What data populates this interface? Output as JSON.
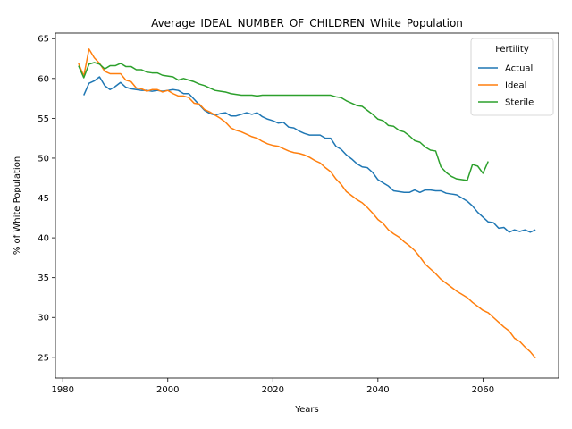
{
  "chart_data": {
    "type": "line",
    "title": "Average_IDEAL_NUMBER_OF_CHILDREN_White_Population",
    "xlabel": "Years",
    "ylabel": "% of White Population",
    "xlim": [
      1978.6,
      2074.4
    ],
    "ylim": [
      22.4,
      65.7
    ],
    "xticks": [
      1980,
      2000,
      2020,
      2040,
      2060
    ],
    "yticks": [
      25,
      30,
      35,
      40,
      45,
      50,
      55,
      60,
      65
    ],
    "grid": false,
    "legend": {
      "title": "Fertility",
      "placement": "top-right"
    },
    "series": [
      {
        "name": "Actual",
        "color": "#1f77b4",
        "x": [
          1984,
          1985,
          1986,
          1987,
          1988,
          1989,
          1990,
          1991,
          1992,
          1993,
          1994,
          1995,
          1996,
          1997,
          1998,
          1999,
          2000,
          2001,
          2002,
          2003,
          2004,
          2005,
          2006,
          2007,
          2008,
          2009,
          2010,
          2011,
          2012,
          2013,
          2014,
          2015,
          2016,
          2017,
          2018,
          2019,
          2020,
          2021,
          2022,
          2023,
          2024,
          2025,
          2026,
          2027,
          2028,
          2029,
          2030,
          2031,
          2032,
          2033,
          2034,
          2035,
          2036,
          2037,
          2038,
          2039,
          2040,
          2041,
          2042,
          2043,
          2044,
          2045,
          2046,
          2047,
          2048,
          2049,
          2050,
          2051,
          2052,
          2053,
          2054,
          2055,
          2056,
          2057,
          2058,
          2059,
          2060,
          2061,
          2062,
          2063,
          2064,
          2065,
          2066,
          2067,
          2068,
          2069,
          2070
        ],
        "y": [
          57.9,
          59.4,
          59.7,
          60.2,
          59.1,
          58.6,
          59.0,
          59.5,
          58.9,
          58.7,
          58.6,
          58.5,
          58.5,
          58.4,
          58.5,
          58.4,
          58.5,
          58.6,
          58.5,
          58.1,
          58.1,
          57.4,
          56.7,
          56.0,
          55.6,
          55.4,
          55.6,
          55.7,
          55.3,
          55.3,
          55.5,
          55.7,
          55.5,
          55.7,
          55.2,
          54.9,
          54.7,
          54.4,
          54.5,
          53.9,
          53.8,
          53.4,
          53.1,
          52.9,
          52.9,
          52.9,
          52.5,
          52.5,
          51.5,
          51.1,
          50.4,
          49.9,
          49.3,
          48.9,
          48.8,
          48.2,
          47.3,
          46.9,
          46.5,
          45.9,
          45.8,
          45.7,
          45.7,
          46.0,
          45.7,
          46.0,
          46.0,
          45.9,
          45.9,
          45.6,
          45.5,
          45.4,
          45.0,
          44.6,
          44.0,
          43.2,
          42.6,
          42.0,
          41.9,
          41.2,
          41.3,
          40.7,
          41.0,
          40.8,
          41.0,
          40.7,
          41.0
        ]
      },
      {
        "name": "Ideal",
        "color": "#ff7f0e",
        "x": [
          1983,
          1984,
          1985,
          1986,
          1987,
          1988,
          1989,
          1990,
          1991,
          1992,
          1993,
          1994,
          1995,
          1996,
          1997,
          1998,
          1999,
          2000,
          2001,
          2002,
          2003,
          2004,
          2005,
          2006,
          2007,
          2008,
          2009,
          2010,
          2011,
          2012,
          2013,
          2014,
          2015,
          2016,
          2017,
          2018,
          2019,
          2020,
          2021,
          2022,
          2023,
          2024,
          2025,
          2026,
          2027,
          2028,
          2029,
          2030,
          2031,
          2032,
          2033,
          2034,
          2035,
          2036,
          2037,
          2038,
          2039,
          2040,
          2041,
          2042,
          2043,
          2044,
          2045,
          2046,
          2047,
          2048,
          2049,
          2050,
          2051,
          2052,
          2053,
          2054,
          2055,
          2056,
          2057,
          2058,
          2059,
          2060,
          2061,
          2062,
          2063,
          2064,
          2065,
          2066,
          2067,
          2068,
          2069,
          2070
        ],
        "y": [
          61.9,
          60.3,
          63.7,
          62.6,
          61.9,
          60.9,
          60.6,
          60.6,
          60.6,
          59.8,
          59.6,
          58.8,
          58.7,
          58.4,
          58.6,
          58.6,
          58.3,
          58.5,
          58.1,
          57.8,
          57.8,
          57.6,
          56.9,
          56.8,
          56.1,
          55.8,
          55.4,
          55.0,
          54.5,
          53.8,
          53.5,
          53.3,
          53.0,
          52.7,
          52.5,
          52.1,
          51.8,
          51.6,
          51.5,
          51.2,
          50.9,
          50.7,
          50.6,
          50.4,
          50.1,
          49.7,
          49.4,
          48.8,
          48.3,
          47.4,
          46.7,
          45.8,
          45.3,
          44.8,
          44.4,
          43.8,
          43.1,
          42.3,
          41.8,
          41.0,
          40.5,
          40.1,
          39.5,
          39.0,
          38.4,
          37.6,
          36.7,
          36.1,
          35.5,
          34.8,
          34.3,
          33.8,
          33.3,
          32.9,
          32.5,
          31.9,
          31.4,
          30.9,
          30.6,
          30.0,
          29.4,
          28.8,
          28.3,
          27.4,
          27.0,
          26.3,
          25.7,
          24.9
        ]
      },
      {
        "name": "Sterile",
        "color": "#2ca02c",
        "x": [
          1983,
          1984,
          1985,
          1986,
          1987,
          1988,
          1989,
          1990,
          1991,
          1992,
          1993,
          1994,
          1995,
          1996,
          1997,
          1998,
          1999,
          2000,
          2001,
          2002,
          2003,
          2004,
          2005,
          2006,
          2007,
          2008,
          2009,
          2010,
          2011,
          2012,
          2013,
          2014,
          2015,
          2016,
          2017,
          2018,
          2019,
          2020,
          2021,
          2022,
          2023,
          2024,
          2025,
          2026,
          2027,
          2028,
          2029,
          2030,
          2031,
          2032,
          2033,
          2034,
          2035,
          2036,
          2037,
          2038,
          2039,
          2040,
          2041,
          2042,
          2043,
          2044,
          2045,
          2046,
          2047,
          2048,
          2049,
          2050,
          2051,
          2052,
          2053,
          2054,
          2055,
          2056,
          2057,
          2058,
          2059,
          2060,
          2061
        ],
        "y": [
          61.6,
          60.1,
          61.8,
          62.0,
          61.8,
          61.2,
          61.6,
          61.6,
          61.9,
          61.5,
          61.5,
          61.1,
          61.1,
          60.8,
          60.7,
          60.7,
          60.4,
          60.3,
          60.2,
          59.8,
          60.0,
          59.8,
          59.6,
          59.3,
          59.1,
          58.8,
          58.5,
          58.4,
          58.3,
          58.1,
          58.0,
          57.9,
          57.9,
          57.9,
          57.8,
          57.9,
          57.9,
          57.9,
          57.9,
          57.9,
          57.9,
          57.9,
          57.9,
          57.9,
          57.9,
          57.9,
          57.9,
          57.9,
          57.9,
          57.7,
          57.6,
          57.2,
          56.9,
          56.6,
          56.5,
          56.0,
          55.5,
          54.9,
          54.7,
          54.1,
          54.0,
          53.5,
          53.3,
          52.8,
          52.2,
          52.0,
          51.4,
          51.0,
          50.9,
          48.9,
          48.2,
          47.7,
          47.4,
          47.3,
          47.2,
          49.2,
          49.0,
          48.1,
          49.6
        ]
      }
    ]
  }
}
